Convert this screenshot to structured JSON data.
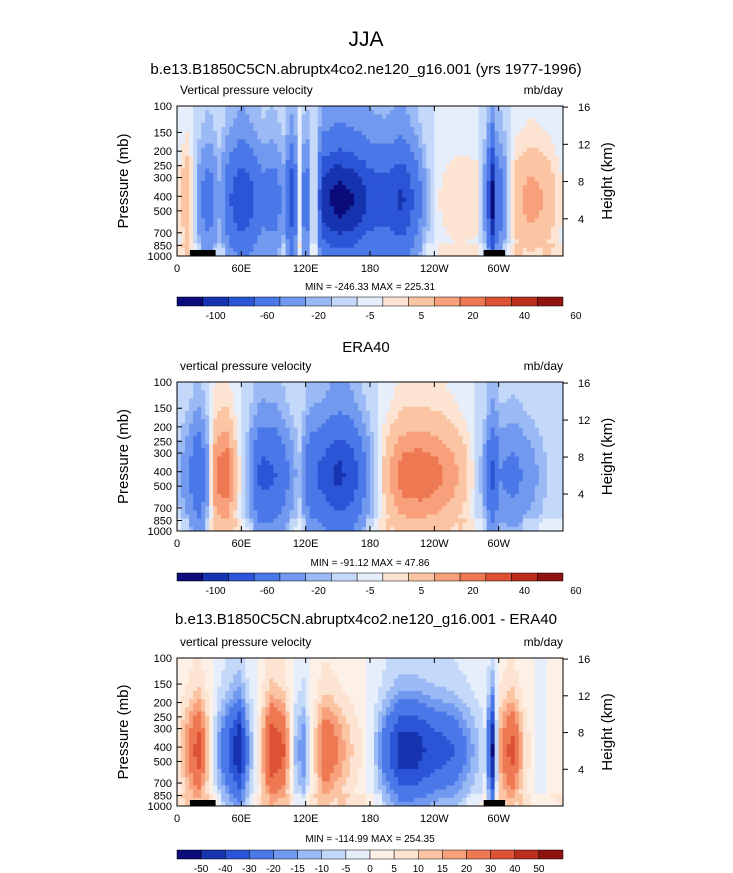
{
  "figure": {
    "title": "JJA"
  },
  "chart_data": [
    {
      "type": "heatmap",
      "title": "b.e13.B1850C5CN.abruptx4co2.ne120_g16.001 (yrs 1977-1996)",
      "left_label": "Vertical pressure velocity",
      "right_label": "mb/day",
      "ylabel": "Pressure (mb)",
      "y2label": "Height (km)",
      "xticks": [
        "0",
        "60E",
        "120E",
        "180",
        "120W",
        "60W"
      ],
      "xtick_lons": [
        0,
        60,
        120,
        180,
        240,
        300
      ],
      "xlim": [
        0,
        360
      ],
      "yticks": [
        "100",
        "150",
        "200",
        "250",
        "300",
        "400",
        "500",
        "700",
        "850",
        "1000"
      ],
      "ytick_values": [
        100,
        150,
        200,
        250,
        300,
        400,
        500,
        700,
        850,
        1000
      ],
      "ylim": [
        1000,
        100
      ],
      "y2ticks": [
        "16",
        "12",
        "8",
        "4"
      ],
      "y2tick_km": [
        16,
        12,
        8,
        4
      ],
      "stats": "MIN = -246.33  MAX = 225.31",
      "colorbar_labels": [
        "-100",
        "-60",
        "-20",
        "-5",
        "5",
        "20",
        "40",
        "60"
      ],
      "colorbar_levels": [
        -100,
        -80,
        -60,
        -40,
        -20,
        -10,
        -5,
        0,
        5,
        10,
        20,
        30,
        40,
        50,
        60
      ],
      "min": -246.33,
      "max": 225.31,
      "palette": "blue-white-red",
      "lon_profile": [
        [
          0,
          5
        ],
        [
          10,
          20
        ],
        [
          22,
          -20
        ],
        [
          30,
          -30
        ],
        [
          40,
          -10
        ],
        [
          48,
          -35
        ],
        [
          60,
          -60
        ],
        [
          70,
          -45
        ],
        [
          80,
          -25
        ],
        [
          90,
          -30
        ],
        [
          100,
          -15
        ],
        [
          108,
          -60
        ],
        [
          114,
          5
        ],
        [
          120,
          -40
        ],
        [
          128,
          10
        ],
        [
          136,
          -70
        ],
        [
          150,
          -90
        ],
        [
          165,
          -80
        ],
        [
          180,
          -55
        ],
        [
          195,
          -50
        ],
        [
          210,
          -65
        ],
        [
          222,
          -35
        ],
        [
          232,
          -10
        ],
        [
          245,
          5
        ],
        [
          262,
          10
        ],
        [
          280,
          8
        ],
        [
          290,
          -25
        ],
        [
          293,
          -120
        ],
        [
          297,
          -40
        ],
        [
          305,
          -20
        ],
        [
          315,
          15
        ],
        [
          330,
          25
        ],
        [
          345,
          18
        ],
        [
          360,
          5
        ]
      ],
      "land_mask_lon": [
        [
          12,
          36
        ],
        [
          286,
          306
        ]
      ]
    },
    {
      "type": "heatmap",
      "title": "ERA40",
      "left_label": "vertical pressure velocity",
      "right_label": "mb/day",
      "ylabel": "Pressure (mb)",
      "y2label": "Height (km)",
      "xticks": [
        "0",
        "60E",
        "120E",
        "180",
        "120W",
        "60W"
      ],
      "xtick_lons": [
        0,
        60,
        120,
        180,
        240,
        300
      ],
      "xlim": [
        0,
        360
      ],
      "yticks": [
        "100",
        "150",
        "200",
        "250",
        "300",
        "400",
        "500",
        "700",
        "850",
        "1000"
      ],
      "ytick_values": [
        100,
        150,
        200,
        250,
        300,
        400,
        500,
        700,
        850,
        1000
      ],
      "ylim": [
        1000,
        100
      ],
      "y2ticks": [
        "16",
        "12",
        "8",
        "4"
      ],
      "y2tick_km": [
        16,
        12,
        8,
        4
      ],
      "stats": "MIN = -91.12  MAX = 47.86",
      "colorbar_labels": [
        "-100",
        "-60",
        "-20",
        "-5",
        "5",
        "20",
        "40",
        "60"
      ],
      "colorbar_levels": [
        -100,
        -80,
        -60,
        -40,
        -20,
        -10,
        -5,
        0,
        5,
        10,
        20,
        30,
        40,
        50,
        60
      ],
      "min": -91.12,
      "max": 47.86,
      "palette": "blue-white-red",
      "lon_profile": [
        [
          0,
          -5
        ],
        [
          12,
          -20
        ],
        [
          20,
          -40
        ],
        [
          28,
          -15
        ],
        [
          36,
          30
        ],
        [
          46,
          40
        ],
        [
          56,
          10
        ],
        [
          66,
          -10
        ],
        [
          78,
          -45
        ],
        [
          92,
          -40
        ],
        [
          104,
          -20
        ],
        [
          114,
          -5
        ],
        [
          124,
          -35
        ],
        [
          136,
          -45
        ],
        [
          150,
          -65
        ],
        [
          162,
          -55
        ],
        [
          174,
          -25
        ],
        [
          184,
          -5
        ],
        [
          195,
          15
        ],
        [
          210,
          35
        ],
        [
          228,
          38
        ],
        [
          245,
          32
        ],
        [
          262,
          20
        ],
        [
          276,
          5
        ],
        [
          286,
          -10
        ],
        [
          294,
          -45
        ],
        [
          302,
          -20
        ],
        [
          314,
          -25
        ],
        [
          328,
          -15
        ],
        [
          345,
          -5
        ],
        [
          360,
          -5
        ]
      ],
      "land_mask_lon": []
    },
    {
      "type": "heatmap",
      "title": "b.e13.B1850C5CN.abruptx4co2.ne120_g16.001 - ERA40",
      "left_label": "vertical pressure velocity",
      "right_label": "mb/day",
      "ylabel": "Pressure (mb)",
      "y2label": "Height (km)",
      "xticks": [
        "0",
        "60E",
        "120E",
        "180",
        "120W",
        "60W"
      ],
      "xtick_lons": [
        0,
        60,
        120,
        180,
        240,
        300
      ],
      "xlim": [
        0,
        360
      ],
      "yticks": [
        "100",
        "150",
        "200",
        "250",
        "300",
        "400",
        "500",
        "700",
        "850",
        "1000"
      ],
      "ytick_values": [
        100,
        150,
        200,
        250,
        300,
        400,
        500,
        700,
        850,
        1000
      ],
      "ylim": [
        1000,
        100
      ],
      "y2ticks": [
        "16",
        "12",
        "8",
        "4"
      ],
      "y2tick_km": [
        16,
        12,
        8,
        4
      ],
      "stats": "MIN = -114.99  MAX = 254.35",
      "colorbar_labels": [
        "-50",
        "-40",
        "-30",
        "-20",
        "-15",
        "-10",
        "-5",
        "0",
        "5",
        "10",
        "15",
        "20",
        "30",
        "40",
        "50"
      ],
      "colorbar_levels": [
        -60,
        -50,
        -40,
        -30,
        -20,
        -15,
        -10,
        -5,
        0,
        5,
        10,
        15,
        20,
        30,
        40,
        50,
        60
      ],
      "min": -114.99,
      "max": 254.35,
      "palette": "blue-white-red",
      "lon_profile": [
        [
          0,
          5
        ],
        [
          10,
          20
        ],
        [
          20,
          35
        ],
        [
          28,
          15
        ],
        [
          38,
          -15
        ],
        [
          50,
          -35
        ],
        [
          58,
          -50
        ],
        [
          66,
          -20
        ],
        [
          76,
          5
        ],
        [
          88,
          40
        ],
        [
          100,
          30
        ],
        [
          110,
          -10
        ],
        [
          118,
          -20
        ],
        [
          126,
          5
        ],
        [
          138,
          30
        ],
        [
          148,
          22
        ],
        [
          160,
          12
        ],
        [
          172,
          5
        ],
        [
          182,
          -5
        ],
        [
          194,
          -25
        ],
        [
          208,
          -45
        ],
        [
          222,
          -45
        ],
        [
          240,
          -35
        ],
        [
          258,
          -30
        ],
        [
          276,
          -15
        ],
        [
          288,
          -5
        ],
        [
          294,
          -55
        ],
        [
          300,
          15
        ],
        [
          312,
          35
        ],
        [
          324,
          10
        ],
        [
          338,
          -5
        ],
        [
          350,
          2
        ],
        [
          360,
          3
        ]
      ],
      "land_mask_lon": [
        [
          12,
          36
        ],
        [
          286,
          306
        ]
      ]
    }
  ]
}
